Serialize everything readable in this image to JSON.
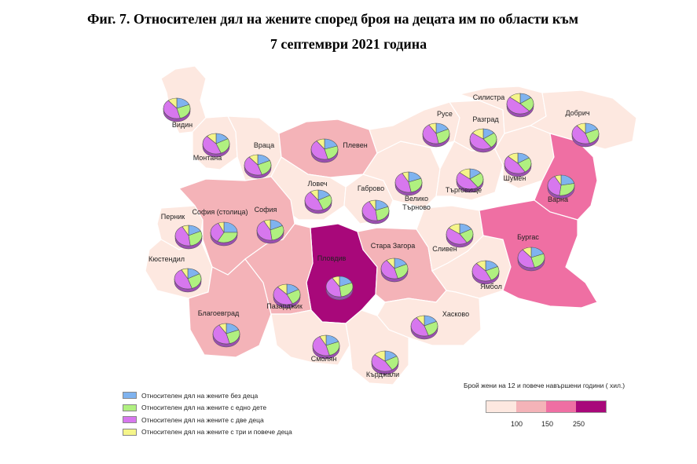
{
  "title": {
    "line1": "Фиг. 7. Относителен дял на жените според броя на децата им по области към",
    "line2": "7 септември 2021 година"
  },
  "category_colors": {
    "no_children": "#7fb3ef",
    "one_child": "#b0f080",
    "two_children": "#d777ee",
    "three_plus": "#f5f58a"
  },
  "legend": [
    {
      "label": "Относителен дял на жените без деца",
      "color": "#7fb3ef"
    },
    {
      "label": "Относителен дял на жените с едно дете",
      "color": "#b0f080"
    },
    {
      "label": "Относителен дял на жените с две деца",
      "color": "#d777ee"
    },
    {
      "label": "Относителен дял на жените с три и повече деца",
      "color": "#f5f58a"
    }
  ],
  "scale": {
    "title": "Брой жени на 12 и повече навършени години ( хил.)",
    "ticks": [
      "100",
      "150",
      "250"
    ],
    "colors": [
      "#fde8e0",
      "#f4b3b8",
      "#ef6fa3",
      "#a8087a"
    ]
  },
  "regions": [
    {
      "name": "Видин",
      "class": 0,
      "shares": [
        19,
        27,
        43,
        11
      ]
    },
    {
      "name": "Монтана",
      "class": 0,
      "shares": [
        17,
        27,
        44,
        12
      ]
    },
    {
      "name": "Враца",
      "class": 0,
      "shares": [
        18,
        27,
        44,
        11
      ]
    },
    {
      "name": "Плевен",
      "class": 1,
      "shares": [
        20,
        26,
        44,
        10
      ]
    },
    {
      "name": "Ловеч",
      "class": 0,
      "shares": [
        17,
        27,
        46,
        10
      ]
    },
    {
      "name": "Габрово",
      "class": 0,
      "shares": [
        19,
        29,
        44,
        8
      ]
    },
    {
      "name": "Велико Търново",
      "class": 0,
      "shares": [
        19,
        28,
        45,
        8
      ]
    },
    {
      "name": "Русе",
      "class": 0,
      "shares": [
        18,
        29,
        44,
        9
      ]
    },
    {
      "name": "Разград",
      "class": 0,
      "shares": [
        15,
        25,
        45,
        15
      ]
    },
    {
      "name": "Силистра",
      "class": 0,
      "shares": [
        15,
        23,
        48,
        14
      ]
    },
    {
      "name": "Добрич",
      "class": 0,
      "shares": [
        18,
        27,
        44,
        11
      ]
    },
    {
      "name": "Търговище",
      "class": 0,
      "shares": [
        15,
        25,
        46,
        14
      ]
    },
    {
      "name": "Шумен",
      "class": 0,
      "shares": [
        16,
        25,
        46,
        13
      ]
    },
    {
      "name": "Варна",
      "class": 2,
      "shares": [
        22,
        30,
        40,
        8
      ]
    },
    {
      "name": "Перник",
      "class": 0,
      "shares": [
        18,
        30,
        44,
        8
      ]
    },
    {
      "name": "София (столица)",
      "class": 3,
      "shares": [
        25,
        33,
        35,
        7
      ]
    },
    {
      "name": "София",
      "class": 1,
      "shares": [
        18,
        30,
        44,
        8
      ]
    },
    {
      "name": "Кюстендил",
      "class": 0,
      "shares": [
        17,
        28,
        47,
        8
      ]
    },
    {
      "name": "Пловдив",
      "class": 3,
      "shares": [
        19,
        29,
        43,
        9
      ]
    },
    {
      "name": "Стара Загора",
      "class": 1,
      "shares": [
        18,
        28,
        44,
        10
      ]
    },
    {
      "name": "Сливен",
      "class": 0,
      "shares": [
        17,
        24,
        44,
        15
      ]
    },
    {
      "name": "Ямбол",
      "class": 0,
      "shares": [
        18,
        25,
        45,
        12
      ]
    },
    {
      "name": "Бургас",
      "class": 2,
      "shares": [
        19,
        27,
        43,
        11
      ]
    },
    {
      "name": "Благоевград",
      "class": 1,
      "shares": [
        19,
        27,
        45,
        9
      ]
    },
    {
      "name": "Пазарджик",
      "class": 1,
      "shares": [
        17,
        26,
        45,
        12
      ]
    },
    {
      "name": "Хасково",
      "class": 0,
      "shares": [
        18,
        27,
        45,
        10
      ]
    },
    {
      "name": "Смолян",
      "class": 0,
      "shares": [
        19,
        27,
        46,
        8
      ]
    },
    {
      "name": "Кърджали",
      "class": 0,
      "shares": [
        17,
        24,
        45,
        14
      ]
    }
  ]
}
